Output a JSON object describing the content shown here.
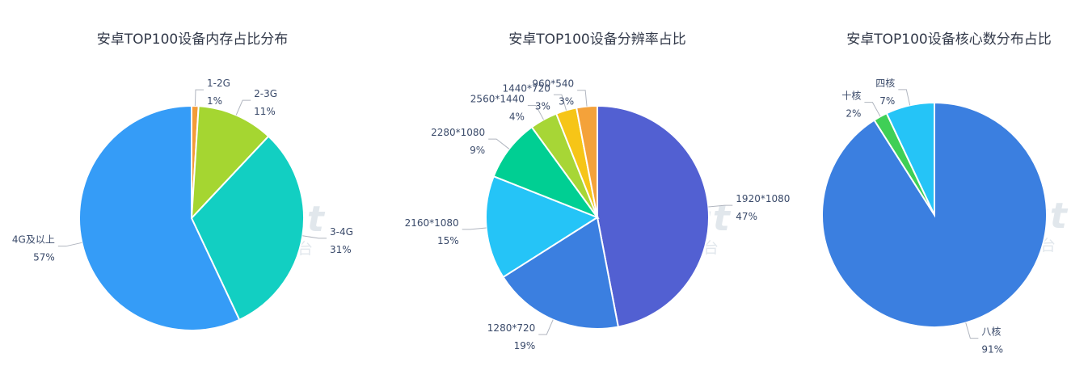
{
  "watermark": {
    "brand": "WeTest",
    "sub": "腾讯质量开放平台"
  },
  "colors": {
    "label": "#3a4a6a",
    "leader": "#b0b5bf"
  },
  "chart_data": [
    {
      "type": "pie",
      "title": "安卓TOP100设备内存占比分布",
      "slices": [
        {
          "label": "1-2G",
          "value": 1,
          "pct": "1%",
          "color": "#f39c38"
        },
        {
          "label": "2-3G",
          "value": 11,
          "pct": "11%",
          "color": "#a5d631"
        },
        {
          "label": "3-4G",
          "value": 31,
          "pct": "31%",
          "color": "#12cfc2"
        },
        {
          "label": "4G及以上",
          "value": 57,
          "pct": "57%",
          "color": "#359cf7"
        }
      ]
    },
    {
      "type": "pie",
      "title": "安卓TOP100设备分辨率占比",
      "slices": [
        {
          "label": "1920*1080",
          "value": 47,
          "pct": "47%",
          "color": "#5260d2"
        },
        {
          "label": "1280*720",
          "value": 19,
          "pct": "19%",
          "color": "#3b7fe0"
        },
        {
          "label": "2160*1080",
          "value": 15,
          "pct": "15%",
          "color": "#25c4f7"
        },
        {
          "label": "2280*1080",
          "value": 9,
          "pct": "9%",
          "color": "#00cf93"
        },
        {
          "label": "2560*1440",
          "value": 4,
          "pct": "4%",
          "color": "#a7d636"
        },
        {
          "label": "1440*720",
          "value": 3,
          "pct": "3%",
          "color": "#f6c517"
        },
        {
          "label": "960*540",
          "value": 3,
          "pct": "3%",
          "color": "#f4a23a"
        }
      ]
    },
    {
      "type": "pie",
      "title": "安卓TOP100设备核心数分布占比",
      "slices": [
        {
          "label": "八核",
          "value": 91,
          "pct": "91%",
          "color": "#3b7fe0"
        },
        {
          "label": "十核",
          "value": 2,
          "pct": "2%",
          "color": "#3fcf56"
        },
        {
          "label": "四核",
          "value": 7,
          "pct": "7%",
          "color": "#25c4f7"
        }
      ]
    }
  ]
}
